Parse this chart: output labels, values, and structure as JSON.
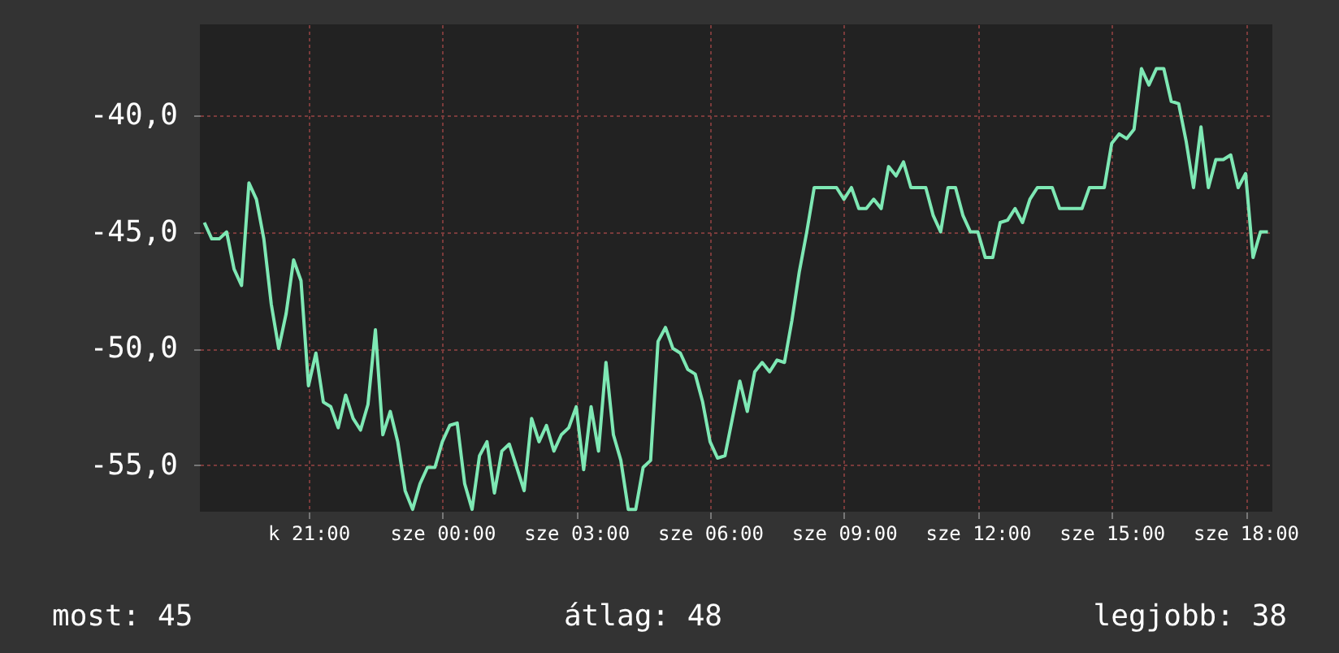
{
  "chart_data": {
    "type": "line",
    "categories": [
      null,
      null,
      null,
      null,
      null,
      null,
      null,
      null,
      null,
      null,
      null,
      null,
      null,
      null,
      "k 21:00",
      null,
      null,
      null,
      null,
      null,
      null,
      null,
      null,
      null,
      null,
      null,
      null,
      null,
      null,
      null,
      null,
      null,
      "sze 00:00",
      null,
      null,
      null,
      null,
      null,
      null,
      null,
      null,
      null,
      null,
      null,
      null,
      null,
      null,
      null,
      null,
      null,
      "sze 03:00",
      null,
      null,
      null,
      null,
      null,
      null,
      null,
      null,
      null,
      null,
      null,
      null,
      null,
      null,
      null,
      null,
      null,
      "sze 06:00",
      null,
      null,
      null,
      null,
      null,
      null,
      null,
      null,
      null,
      null,
      null,
      null,
      null,
      null,
      null,
      null,
      null,
      "sze 09:00",
      null,
      null,
      null,
      null,
      null,
      null,
      null,
      null,
      null,
      null,
      null,
      null,
      null,
      null,
      null,
      null,
      null,
      "sze 12:00",
      null,
      null,
      null,
      null,
      null,
      null,
      null,
      null,
      null,
      null,
      null,
      null,
      null,
      null,
      null,
      null,
      null,
      "sze 15:00",
      null,
      null,
      null,
      null,
      null,
      null,
      null,
      null,
      null,
      null,
      null,
      null,
      null,
      null,
      null,
      null,
      null,
      "sze 18:00",
      null,
      null,
      null
    ],
    "series": [
      {
        "color": "#7ee8b4",
        "values": [
          -44.6,
          -45.3,
          -45.3,
          -45.0,
          -46.6,
          -47.3,
          -42.9,
          -43.6,
          -45.3,
          -48.1,
          -50.0,
          -48.5,
          -46.2,
          -47.1,
          -51.6,
          -50.2,
          -52.3,
          -52.5,
          -53.4,
          -52.0,
          -53.0,
          -53.5,
          -52.4,
          -49.2,
          -53.7,
          -52.7,
          -54.0,
          -56.1,
          -56.9,
          -55.8,
          -55.1,
          -55.1,
          -54.0,
          -53.3,
          -53.2,
          -55.8,
          -56.9,
          -54.6,
          -54.0,
          -56.2,
          -54.4,
          -54.1,
          -55.1,
          -56.1,
          -53.0,
          -54.0,
          -53.3,
          -54.4,
          -53.7,
          -53.4,
          -52.5,
          -55.2,
          -52.5,
          -54.4,
          -50.6,
          -53.7,
          -54.8,
          -56.9,
          -56.9,
          -55.1,
          -54.8,
          -49.7,
          -49.1,
          -50.0,
          -50.2,
          -50.9,
          -51.1,
          -52.3,
          -54.0,
          -54.7,
          -54.6,
          -53.0,
          -51.4,
          -52.7,
          -51.0,
          -50.6,
          -51.0,
          -50.5,
          -50.6,
          -48.8,
          -46.7,
          -45.0,
          -43.1,
          -43.1,
          -43.1,
          -43.1,
          -43.6,
          -43.1,
          -44.0,
          -44.0,
          -43.6,
          -44.0,
          -42.2,
          -42.6,
          -42.0,
          -43.1,
          -43.1,
          -43.1,
          -44.3,
          -45.0,
          -43.1,
          -43.1,
          -44.3,
          -45.0,
          -45.0,
          -46.1,
          -46.1,
          -44.6,
          -44.5,
          -44.0,
          -44.6,
          -43.6,
          -43.1,
          -43.1,
          -43.1,
          -44.0,
          -44.0,
          -44.0,
          -44.0,
          -43.1,
          -43.1,
          -43.1,
          -41.2,
          -40.8,
          -41.0,
          -40.6,
          -38.0,
          -38.7,
          -38.0,
          -38.0,
          -39.4,
          -39.5,
          -41.1,
          -43.1,
          -40.5,
          -43.1,
          -41.9,
          -41.9,
          -41.7,
          -43.1,
          -42.5,
          -46.1,
          -45.0,
          -45.0
        ]
      }
    ],
    "ylim": [
      -57,
      -36.1
    ],
    "yticks": [
      {
        "value": -55,
        "label": "-55,0"
      },
      {
        "value": -50,
        "label": "-50,0"
      },
      {
        "value": -45,
        "label": "-45,0"
      },
      {
        "value": -40,
        "label": "-40,0"
      }
    ],
    "grid": true,
    "annotations": [
      "most: 45",
      "átlag: 48",
      "legjobb: 38"
    ]
  }
}
